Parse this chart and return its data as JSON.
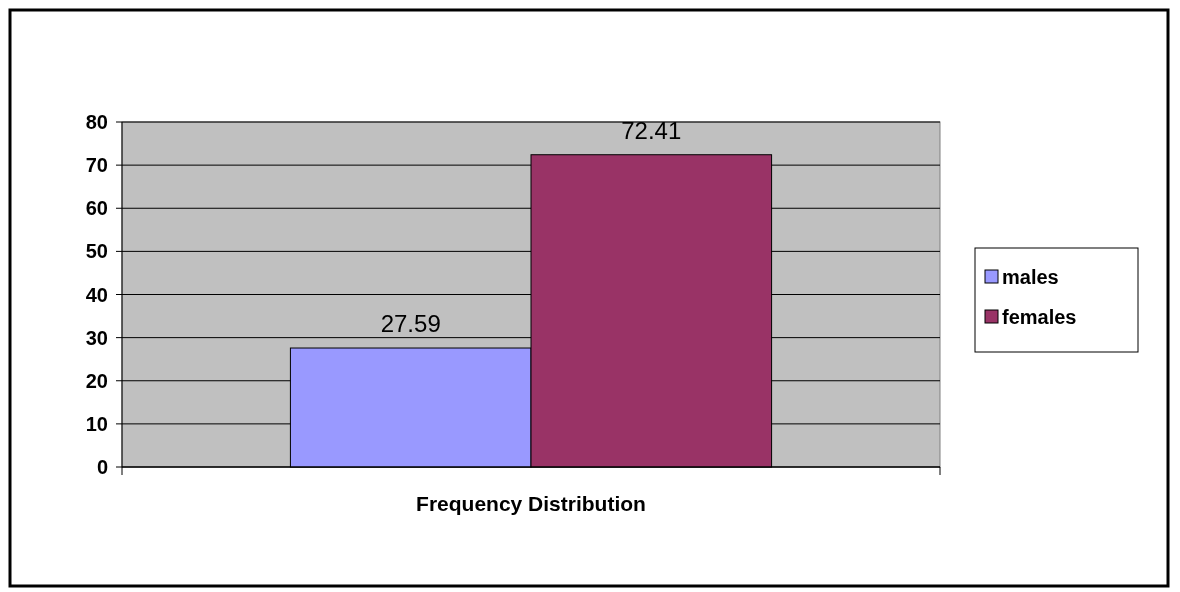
{
  "chart_data": {
    "type": "bar",
    "categories": [
      "Frequency Distribution"
    ],
    "series": [
      {
        "name": "males",
        "color": "#9999ff",
        "values": [
          27.59
        ]
      },
      {
        "name": "females",
        "color": "#993366",
        "values": [
          72.41
        ]
      }
    ],
    "ylim": [
      0,
      80
    ],
    "yticks": [
      0,
      10,
      20,
      30,
      40,
      50,
      60,
      70,
      80
    ],
    "grid": "y",
    "legend": "right",
    "data_labels": true
  }
}
